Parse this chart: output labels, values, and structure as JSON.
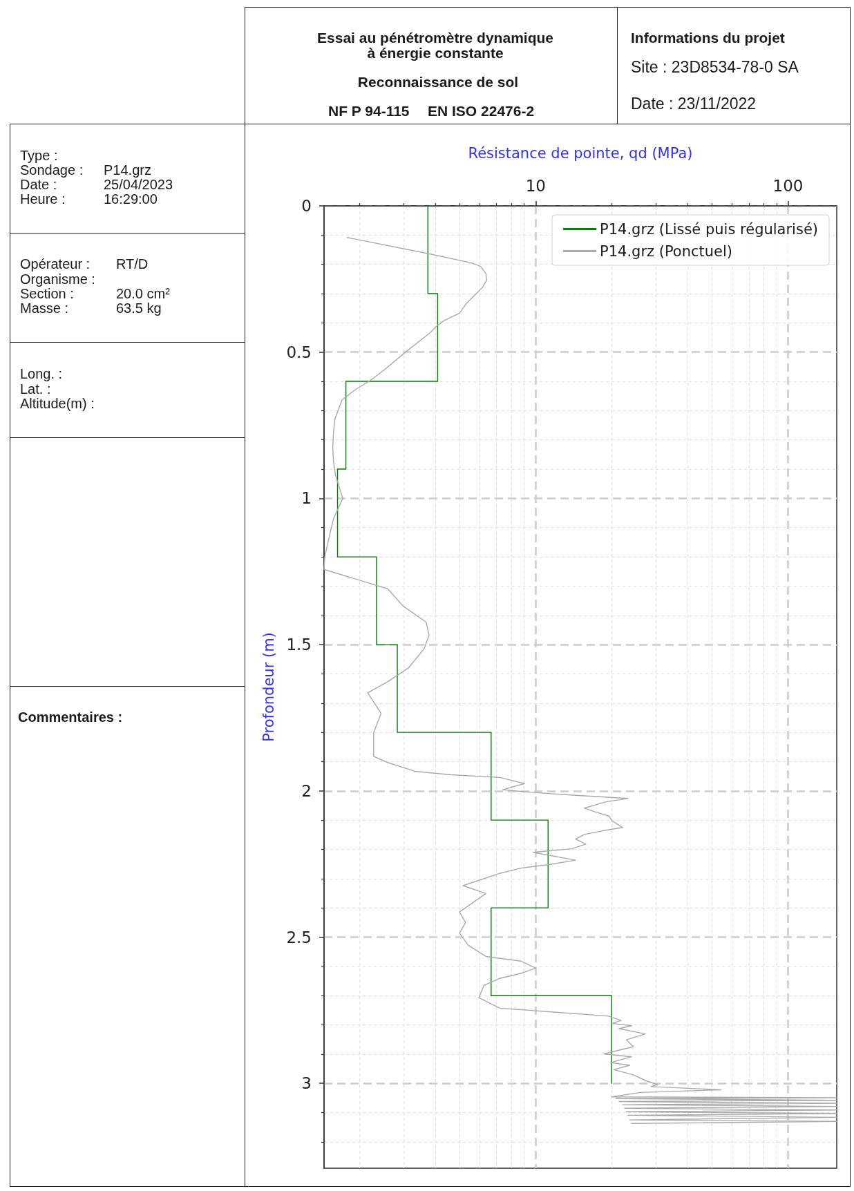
{
  "chart_data": {
    "type": "line",
    "title": "Essai au pénétromètre dynamique\nà énergie constante",
    "subtitle": "Reconnaissance de sol",
    "xlabel": "Résistance de pointe, qd (MPa)",
    "ylabel": "Profondeur (m)",
    "annotations": [
      "NF P 94-115",
      "EN ISO 22476-2",
      "Informations du projet",
      "Site : 23D8534-78-0 SA",
      "Date : 23/11/2022",
      "Type :",
      "Sondage :",
      "P14.grz",
      "Date :",
      "25/04/2023",
      "Heure :",
      "16:29:00",
      "Opérateur :",
      "RT/D",
      "Organisme :",
      "Section :",
      "20.0 cm²",
      "Masse :",
      "63.5 kg",
      "Long. :",
      "Lat. :",
      "Altitude(m) :",
      "Commentaires :"
    ],
    "log": "x",
    "xlim": [
      1.45,
      156
    ],
    "xticks": [
      {
        "value": 2,
        "label": null
      },
      {
        "value": 3,
        "label": null
      },
      {
        "value": 4,
        "label": null
      },
      {
        "value": 5,
        "label": null
      },
      {
        "value": 6,
        "label": null
      },
      {
        "value": 7,
        "label": null
      },
      {
        "value": 8,
        "label": null
      },
      {
        "value": 9,
        "label": null
      },
      10,
      {
        "value": 20,
        "label": null
      },
      {
        "value": 30,
        "label": null
      },
      {
        "value": 40,
        "label": null
      },
      {
        "value": 50,
        "label": null
      },
      {
        "value": 60,
        "label": null
      },
      {
        "value": 70,
        "label": null
      },
      {
        "value": 80,
        "label": null
      },
      {
        "value": 90,
        "label": null
      },
      100
    ],
    "ylim": [
      3.29,
      0
    ],
    "yticks": [
      0,
      {
        "value": 0.1,
        "label": null
      },
      {
        "value": 0.2,
        "label": null
      },
      {
        "value": 0.3,
        "label": null
      },
      {
        "value": 0.4,
        "label": null
      },
      0.5,
      {
        "value": 0.6,
        "label": null
      },
      {
        "value": 0.7,
        "label": null
      },
      {
        "value": 0.8,
        "label": null
      },
      {
        "value": 0.9,
        "label": null
      },
      1,
      {
        "value": 1.1,
        "label": null
      },
      {
        "value": 1.2,
        "label": null
      },
      {
        "value": 1.3,
        "label": null
      },
      {
        "value": 1.4,
        "label": null
      },
      1.5,
      {
        "value": 1.6,
        "label": null
      },
      {
        "value": 1.7,
        "label": null
      },
      {
        "value": 1.8,
        "label": null
      },
      {
        "value": 1.9,
        "label": null
      },
      2,
      {
        "value": 2.1,
        "label": null
      },
      {
        "value": 2.2,
        "label": null
      },
      {
        "value": 2.3,
        "label": null
      },
      {
        "value": 2.4,
        "label": null
      },
      2.5,
      {
        "value": 2.6,
        "label": null
      },
      {
        "value": 2.7,
        "label": null
      },
      {
        "value": 2.8,
        "label": null
      },
      {
        "value": 2.9,
        "label": null
      },
      3,
      {
        "value": 3.1,
        "label": null
      },
      {
        "value": 3.2,
        "label": null
      }
    ],
    "grid": true,
    "legend": "top right",
    "line_style": "solid",
    "series": [
      {
        "name": "P14.grz (Lissé puis régularisé)",
        "color": "#008000",
        "x": [
          3.74,
          3.74,
          4.09,
          4.09,
          1.77,
          1.77,
          1.64,
          1.64,
          2.34,
          2.34,
          2.83,
          2.83,
          6.66,
          6.66,
          11.2,
          11.2,
          6.66,
          6.66,
          20,
          20
        ],
        "values": [
          0,
          0.3,
          0.3,
          0.6,
          0.6,
          0.9,
          0.9,
          1.2,
          1.2,
          1.5,
          1.5,
          1.8,
          1.8,
          2.1,
          2.1,
          2.4,
          2.4,
          2.7,
          2.7,
          3.0
        ]
      },
      {
        "name": "P14.grz (Ponctuel)",
        "color": "#a9a9a9",
        "x": [
          1.79,
          3.74,
          5.58,
          6.05,
          6.35,
          6.39,
          6.15,
          5.77,
          5.32,
          4.99,
          4.32,
          4.05,
          3.8,
          3.04,
          2.51,
          2.21,
          1.94,
          1.71,
          1.6,
          1.58,
          1.57,
          1.58,
          1.61,
          1.65,
          1.72,
          1.58,
          1.5,
          1.46,
          1.45,
          2.59,
          2.99,
          3.68,
          3.78,
          3.62,
          3.14,
          2.59,
          2.16,
          2.44,
          2.28,
          2.28,
          2.59,
          3.32,
          4.61,
          7.21,
          9.03,
          7.4,
          9.62,
          13.7,
          23.2,
          18.9,
          15.6,
          17.1,
          19.5,
          20.1,
          22.1,
          18.3,
          15.6,
          14.4,
          15.8,
          13.9,
          9.78,
          14.4,
          11.3,
          8.74,
          7.21,
          5.15,
          6.35,
          4.99,
          5.27,
          4.99,
          5.41,
          6.35,
          8.74,
          10,
          8.74,
          7.21,
          6.24,
          5.95,
          7.21,
          11.3,
          19.5,
          21.8,
          20.1,
          24,
          21.4,
          27.2,
          22.9,
          24.4,
          18.6,
          24,
          19.8,
          23.6,
          20.4,
          24.4,
          27.7,
          30.5,
          28.6,
          54.2,
          26,
          20,
          156,
          20.8,
          156,
          21.4,
          156,
          22.1,
          156,
          22.5,
          156,
          22.8,
          156,
          23.2,
          156,
          23.6,
          156,
          24
        ],
        "values": [
          0.108,
          0.163,
          0.195,
          0.207,
          0.231,
          0.255,
          0.279,
          0.303,
          0.333,
          0.367,
          0.393,
          0.411,
          0.435,
          0.501,
          0.561,
          0.597,
          0.627,
          0.663,
          0.729,
          0.777,
          0.825,
          0.873,
          0.921,
          0.95,
          1.0,
          1.07,
          1.153,
          1.2,
          1.243,
          1.309,
          1.369,
          1.423,
          1.468,
          1.513,
          1.579,
          1.627,
          1.665,
          1.735,
          1.801,
          1.882,
          1.903,
          1.933,
          1.945,
          1.954,
          1.975,
          1.996,
          2.005,
          2.014,
          2.026,
          2.038,
          2.059,
          2.071,
          2.086,
          2.103,
          2.125,
          2.137,
          2.149,
          2.165,
          2.182,
          2.198,
          2.21,
          2.237,
          2.252,
          2.264,
          2.282,
          2.324,
          2.351,
          2.414,
          2.45,
          2.486,
          2.528,
          2.566,
          2.582,
          2.606,
          2.624,
          2.641,
          2.665,
          2.707,
          2.743,
          2.755,
          2.77,
          2.785,
          2.795,
          2.803,
          2.813,
          2.831,
          2.851,
          2.875,
          2.899,
          2.909,
          2.929,
          2.938,
          2.953,
          2.971,
          2.993,
          3.004,
          3.011,
          3.022,
          3.031,
          3.046,
          3.049,
          3.052,
          3.058,
          3.062,
          3.068,
          3.073,
          3.079,
          3.085,
          3.091,
          3.097,
          3.103,
          3.109,
          3.116,
          3.125,
          3.13,
          3.137
        ]
      }
    ]
  }
}
